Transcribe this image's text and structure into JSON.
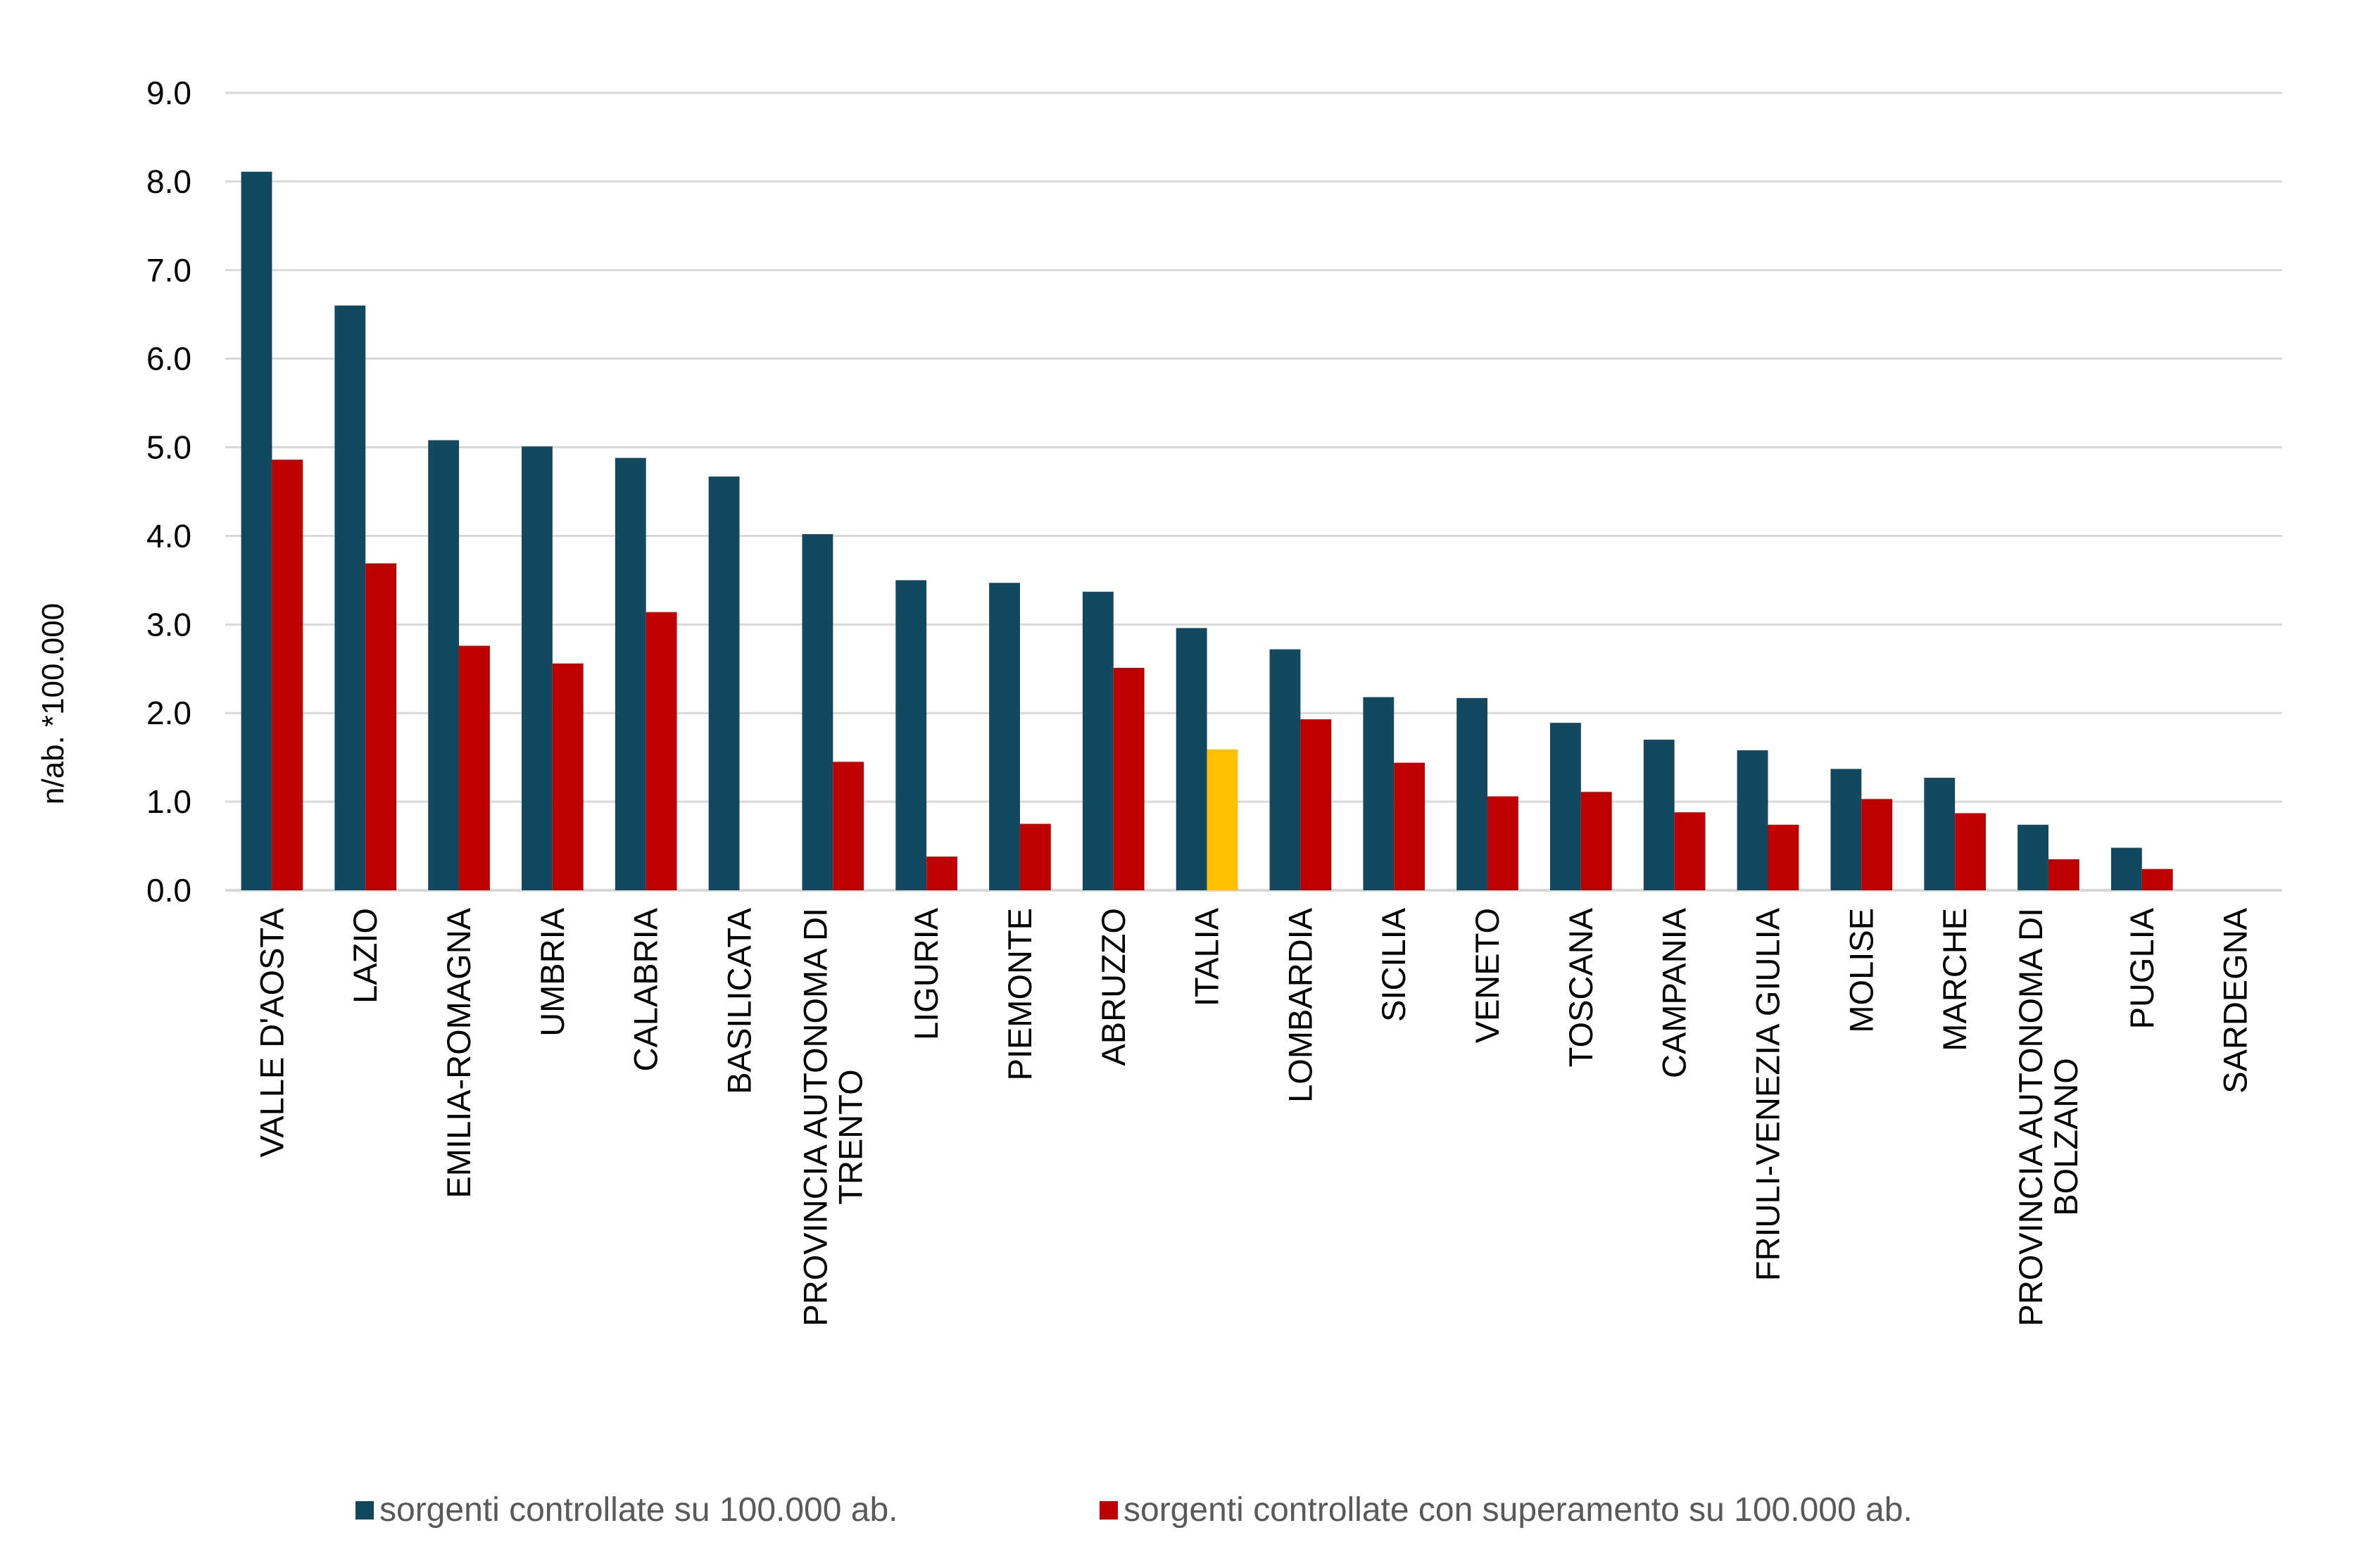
{
  "chart_data": {
    "type": "bar",
    "title": "",
    "xlabel": "",
    "ylabel": "n/ab. *100.000",
    "ylim": [
      0,
      9
    ],
    "yticks": [
      "0.0",
      "1.0",
      "2.0",
      "3.0",
      "4.0",
      "5.0",
      "6.0",
      "7.0",
      "8.0",
      "9.0"
    ],
    "grid": true,
    "legend_position": "bottom",
    "categories": [
      [
        "VALLE D'AOSTA"
      ],
      [
        "LAZIO"
      ],
      [
        "EMILIA-ROMAGNA"
      ],
      [
        "UMBRIA"
      ],
      [
        "CALABRIA"
      ],
      [
        "BASILICATA"
      ],
      [
        "PROVINCIA AUTONOMA DI",
        "TRENTO"
      ],
      [
        "LIGURIA"
      ],
      [
        "PIEMONTE"
      ],
      [
        "ABRUZZO"
      ],
      [
        "ITALIA"
      ],
      [
        "LOMBARDIA"
      ],
      [
        "SICILIA"
      ],
      [
        "VENETO"
      ],
      [
        "TOSCANA"
      ],
      [
        "CAMPANIA"
      ],
      [
        "FRIULI-VENEZIA GIULIA"
      ],
      [
        "MOLISE"
      ],
      [
        "MARCHE"
      ],
      [
        "PROVINCIA AUTONOMA DI",
        "BOLZANO"
      ],
      [
        "PUGLIA"
      ],
      [
        "SARDEGNA"
      ]
    ],
    "series": [
      {
        "name": "sorgenti controllate su 100.000 ab.",
        "color": "#134960",
        "values": [
          8.11,
          6.6,
          5.08,
          5.01,
          4.88,
          4.67,
          4.02,
          3.5,
          3.47,
          3.37,
          2.96,
          2.72,
          2.18,
          2.17,
          1.89,
          1.7,
          1.58,
          1.37,
          1.27,
          0.74,
          0.48,
          0
        ]
      },
      {
        "name": "sorgenti controllate con superamento su 100.000 ab.",
        "color": "#C00000",
        "highlight_color": "#FFC000",
        "highlight_category": "ITALIA",
        "values": [
          4.86,
          3.69,
          2.76,
          2.56,
          3.14,
          0,
          1.45,
          0.38,
          0.75,
          2.51,
          1.59,
          1.93,
          1.44,
          1.06,
          1.11,
          0.88,
          0.74,
          1.03,
          0.87,
          0.35,
          0.24,
          0
        ]
      }
    ]
  },
  "legend": [
    {
      "label": "sorgenti controllate su 100.000 ab.",
      "color": "#134960"
    },
    {
      "label": "sorgenti controllate con superamento su 100.000 ab.",
      "color": "#C00000"
    }
  ]
}
